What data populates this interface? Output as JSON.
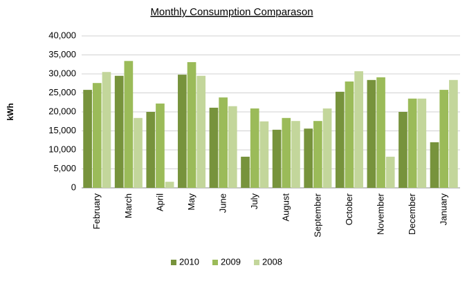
{
  "chart_data": {
    "type": "bar",
    "title": "Monthly Consumption Comparason",
    "y_label": "kWh",
    "categories": [
      "February",
      "March",
      "April",
      "May",
      "June",
      "July",
      "August",
      "September",
      "October",
      "November",
      "December",
      "January"
    ],
    "series": [
      {
        "name": "2010",
        "color": "#77933c",
        "values": [
          25800,
          29500,
          20000,
          29800,
          21100,
          8200,
          15300,
          15600,
          25300,
          28400,
          20000,
          12000
        ]
      },
      {
        "name": "2009",
        "color": "#9bbb59",
        "values": [
          27600,
          33400,
          22200,
          33100,
          23800,
          20900,
          18400,
          17600,
          28000,
          29100,
          23500,
          25800
        ]
      },
      {
        "name": "2008",
        "color": "#c3d69b",
        "values": [
          30500,
          18400,
          1600,
          29500,
          21500,
          17500,
          17600,
          20900,
          30700,
          8200,
          23500,
          28400
        ]
      }
    ],
    "ylim": [
      0,
      40000
    ],
    "yticks": [
      0,
      {
        "value": 5000,
        "label": "5,000"
      },
      {
        "value": 10000,
        "label": "10,000"
      },
      {
        "value": 15000,
        "label": "15,000"
      },
      {
        "value": 20000,
        "label": "20,000"
      },
      {
        "value": 25000,
        "label": "25,000"
      },
      {
        "value": 30000,
        "label": "30,000"
      },
      {
        "value": 35000,
        "label": "35,000"
      },
      {
        "value": 40000,
        "label": "40,000"
      }
    ],
    "grid": true,
    "legend": "bottom"
  }
}
